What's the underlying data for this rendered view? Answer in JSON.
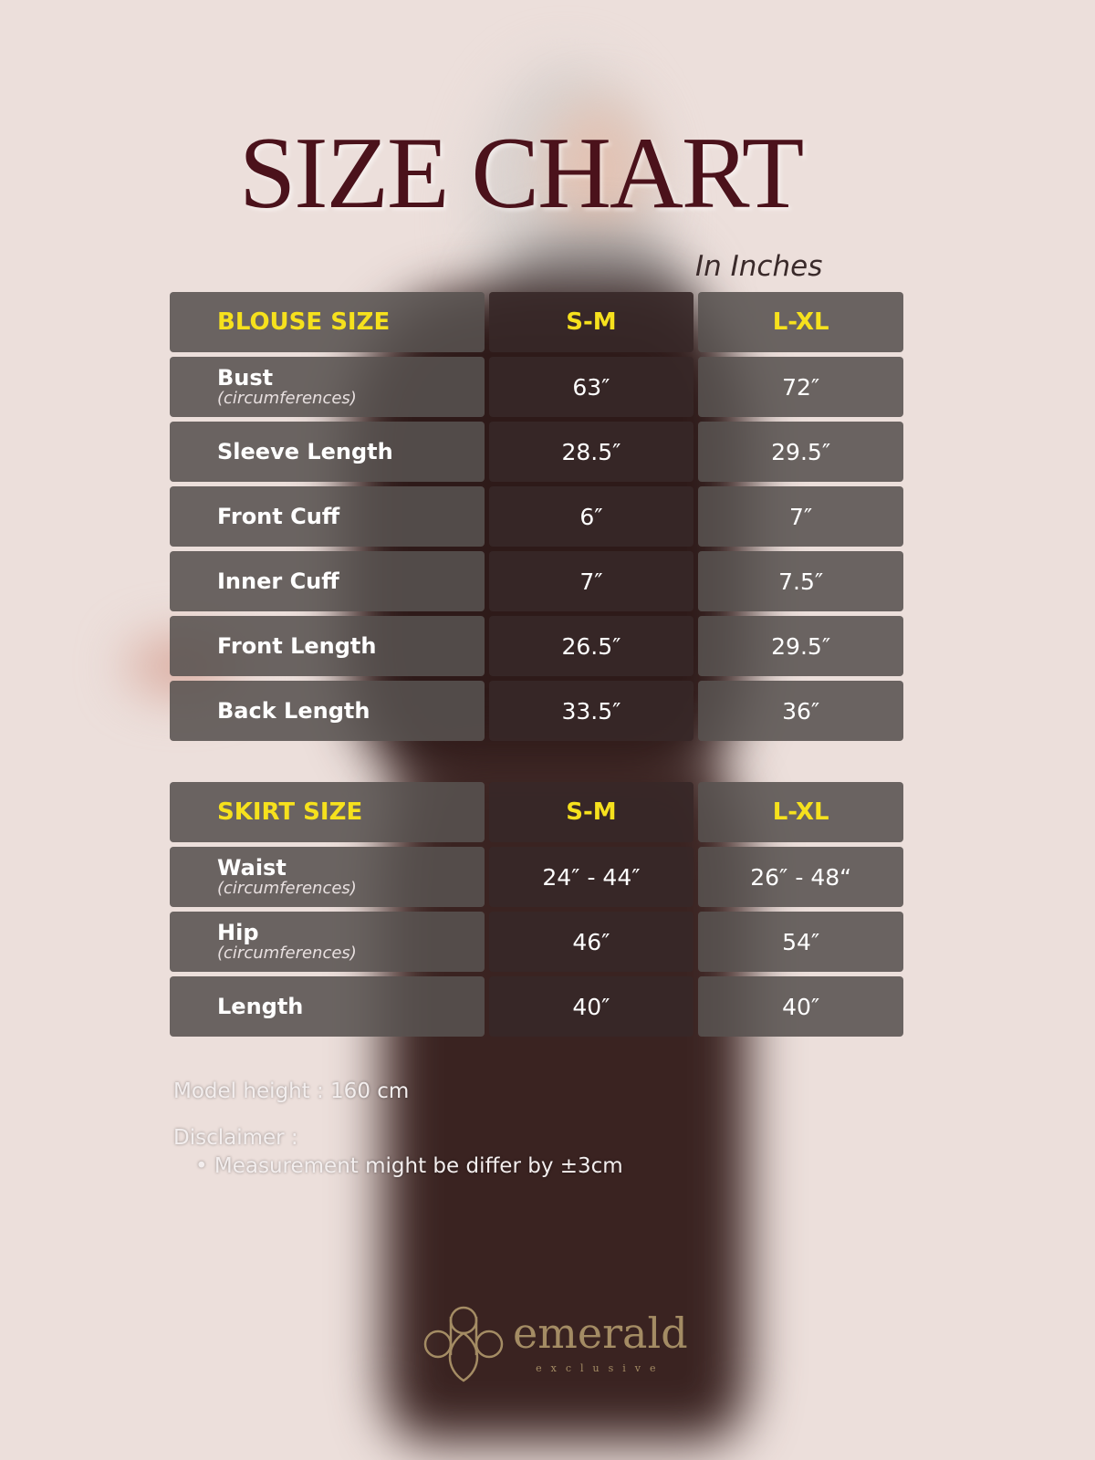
{
  "title": "SIZE CHART",
  "subtitle": "In Inches",
  "blouse": {
    "header": [
      "BLOUSE SIZE",
      "S-M",
      "L-XL"
    ],
    "rows": [
      {
        "label": "Bust",
        "note": "(circumferences)",
        "sm": "63″",
        "lxl": "72″"
      },
      {
        "label": "Sleeve Length",
        "note": "",
        "sm": "28.5″",
        "lxl": "29.5″"
      },
      {
        "label": "Front Cuff",
        "note": "",
        "sm": "6″",
        "lxl": "7″"
      },
      {
        "label": "Inner Cuff",
        "note": "",
        "sm": "7″",
        "lxl": "7.5″"
      },
      {
        "label": "Front Length",
        "note": "",
        "sm": "26.5″",
        "lxl": "29.5″"
      },
      {
        "label": "Back Length",
        "note": "",
        "sm": "33.5″",
        "lxl": "36″"
      }
    ]
  },
  "skirt": {
    "header": [
      "SKIRT SIZE",
      "S-M",
      "L-XL"
    ],
    "rows": [
      {
        "label": "Waist",
        "note": "(circumferences)",
        "sm": "24″ - 44″",
        "lxl": "26″ - 48“"
      },
      {
        "label": "Hip",
        "note": "(circumferences)",
        "sm": "46″",
        "lxl": "54″"
      },
      {
        "label": "Length",
        "note": "",
        "sm": "40″",
        "lxl": "40″"
      }
    ]
  },
  "footer": {
    "model_height": "Model height : 160 cm",
    "disclaimer_label": "Disclaimer :",
    "disclaimer_items": [
      "Measurement might be differ by ±3cm"
    ]
  },
  "logo": {
    "name": "emerald",
    "tagline": "exclusive"
  },
  "colors": {
    "title": "#4b121b",
    "header_text": "#f6e11d",
    "background": "#ecdfdb",
    "logo": "#a48c64"
  }
}
